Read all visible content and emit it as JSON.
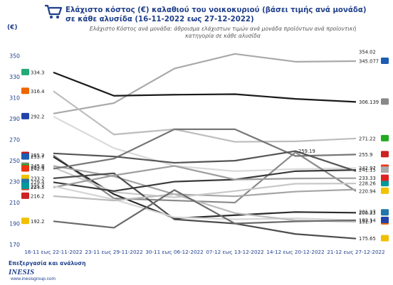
{
  "header": {
    "title": "Ελάχιστο κόστος (€) καλαθιού του νοικοκυριού (βάσει τιμής ανά μονάδα) σε κάθε αλυσίδα (16-11-2022 εως 27-12-2022)",
    "subtitle": "Ελάχιστο Κόστος ανά μονάδα: άθροισμα ελάχιστων τιμών ανά μονάδα προϊόντων ανά προϊοντική κατηγορία σε κάθε αλυσίδα",
    "unit": "(€)"
  },
  "footer": {
    "credit": "Επεξεργασία και ανάλυση",
    "logo_name": "INESIS",
    "logo_url": "www.inesisgroup.com"
  },
  "chart_data": {
    "type": "line",
    "x": [
      "16-11 εως 22-11-2022",
      "23-11 εως 29-11-2022",
      "30-11 εως 06-12-2022",
      "07-12 εως 13-12-2022",
      "14-12 εως 20-12-2022",
      "21-12 εως 27-12-2022"
    ],
    "ylim": [
      170,
      360
    ],
    "yticks": [
      170,
      190,
      210,
      230,
      250,
      270,
      290,
      310,
      330,
      350
    ],
    "grid": false,
    "legend": "none",
    "series": [
      {
        "values": [
          295.0,
          305.0,
          338.0,
          352.0,
          344.5,
          345.077
        ],
        "color": "#a9a9a9",
        "first_label": "",
        "last_label": "345.077"
      },
      {
        "values": [
          334.3,
          312.0,
          313.0,
          313.5,
          309.0,
          306.139
        ],
        "color": "#1a1a1a",
        "first_label": "334.3",
        "last_label": "306.139"
      },
      {
        "values": [
          316.4,
          275.0,
          280.0,
          268.0,
          268.5,
          271.22
        ],
        "color": "#bdbdbd",
        "first_label": "316.4",
        "last_label": "271.22"
      },
      {
        "values": [
          292.2,
          262.0,
          245.0,
          240.0,
          242.0,
          242.97
        ],
        "color": "#dadada",
        "first_label": "292.2",
        "last_label": "242.97"
      },
      {
        "values": [
          255.2,
          214.0,
          212.0,
          210.0,
          258.0,
          220.94
        ],
        "color": "#8a8a8a",
        "first_label": "255.2",
        "last_label": "220.94"
      },
      {
        "values": [
          253.7,
          218.0,
          195.0,
          198.0,
          201.0,
          200.33
        ],
        "color": "#2b2b2b",
        "first_label": "253.7",
        "last_label": "200.33"
      },
      {
        "values": [
          245.0,
          235.0,
          218.0,
          216.0,
          220.5,
          222.5
        ],
        "color": "#a6a6a6",
        "first_label": "245.0",
        "last_label": ""
      },
      {
        "values": [
          243.6,
          220.0,
          215.0,
          221.0,
          228.0,
          228.26
        ],
        "color": "#c8c8c8",
        "first_label": "243.6",
        "last_label": "228.26"
      },
      {
        "values": [
          242.3,
          252.0,
          280.0,
          280.0,
          254.5,
          255.9
        ],
        "color": "#777777",
        "first_label": "242.3",
        "last_label": "255.9"
      },
      {
        "values": [
          233.2,
          238.0,
          194.0,
          190.0,
          180.0,
          175.65
        ],
        "color": "#4d4d4d",
        "first_label": "233.2",
        "last_label": "175.65"
      },
      {
        "values": [
          229.4,
          221.0,
          230.0,
          232.0,
          240.0,
          241.15
        ],
        "color": "#3a3a3a",
        "first_label": "229.4",
        "last_label": "241.15"
      },
      {
        "values": [
          224.5,
          236.0,
          245.0,
          232.0,
          233.0,
          233.33
        ],
        "color": "#9e9e9e",
        "first_label": "224.5",
        "last_label": "233.33"
      },
      {
        "values": [
          225.7,
          213.0,
          196.0,
          194.0,
          195.0,
          193.14
        ],
        "color": "#d5d5d5",
        "first_label": "225.7",
        "last_label": "193.14"
      },
      {
        "values": [
          216.2,
          212.0,
          218.0,
          200.0,
          193.0,
          191.7
        ],
        "color": "#bcbcbc",
        "first_label": "216.2",
        "last_label": "191.7"
      },
      {
        "values": [
          192.2,
          186.0,
          222.0,
          190.0,
          192.0,
          193.1
        ],
        "color": "#6a6a6a",
        "first_label": "192.2",
        "last_label": "193.1"
      },
      {
        "values": [
          257.0,
          254.0,
          248.0,
          250.0,
          259.19,
          240.0
        ],
        "color": "#555555",
        "first_label": "",
        "last_label": ""
      }
    ],
    "annotations": [
      {
        "text": "259.19",
        "x_index": 4,
        "y": 259.19
      },
      {
        "text": "354.02",
        "x_index": 5,
        "y": 354.02
      },
      {
        "text": "201.27",
        "x_index": 5,
        "y": 201.27
      }
    ]
  }
}
